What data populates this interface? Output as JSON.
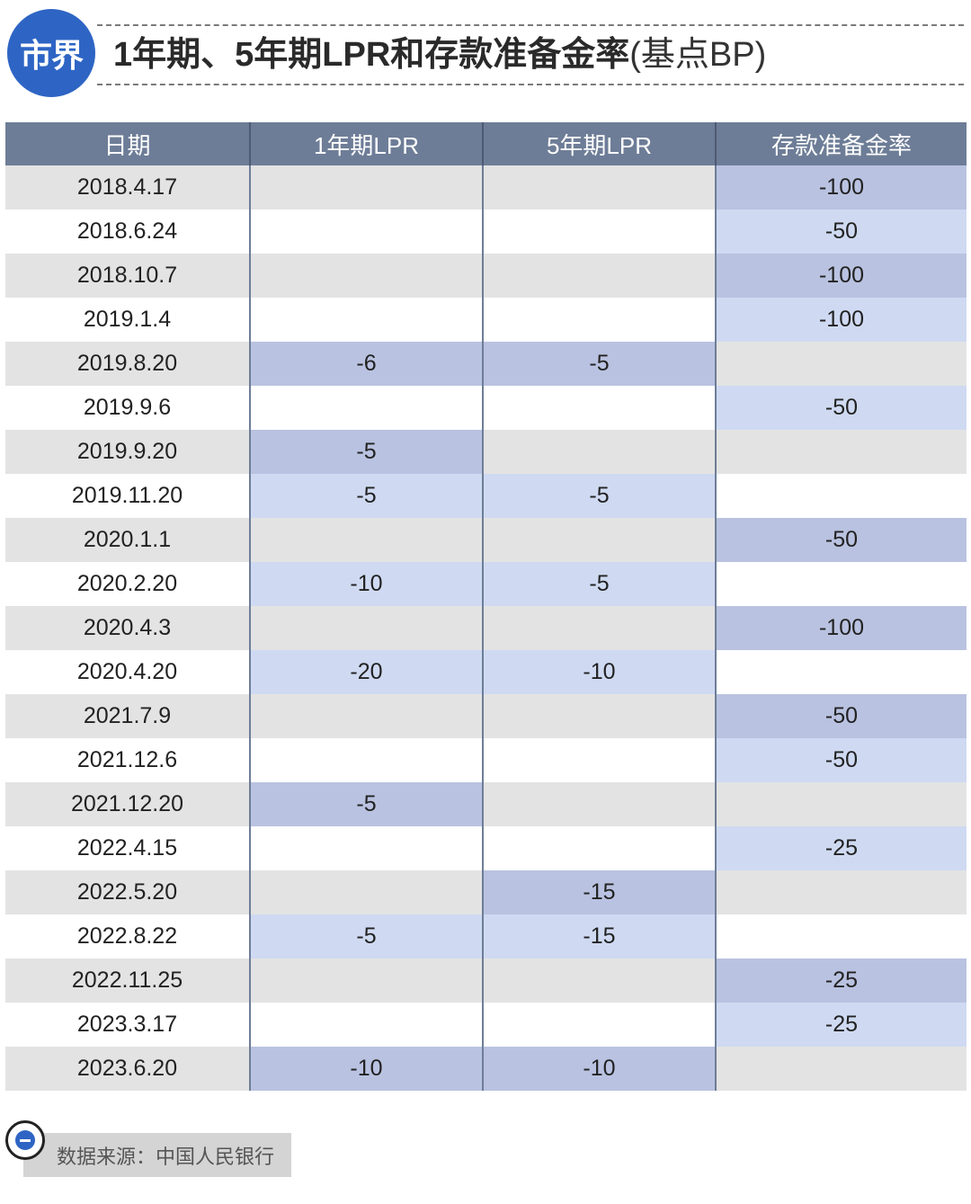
{
  "header": {
    "logo_text": "市界",
    "title_main": "1年期、5年期LPR和存款准备金率",
    "title_unit": "(基点BP)"
  },
  "colors": {
    "header_bg": "#6e7d97",
    "highlight_dark": "#b9c2e0",
    "highlight_light": "#cfdaf2",
    "zebra_gray": "#e3e3e3",
    "logo_blue": "#2e65c4"
  },
  "chart_data": {
    "type": "table",
    "title": "1年期、5年期LPR和存款准备金率(基点BP)",
    "columns": [
      "日期",
      "1年期LPR",
      "5年期LPR",
      "存款准备金率"
    ],
    "rows": [
      [
        "2018.4.17",
        "",
        "",
        "-100"
      ],
      [
        "2018.6.24",
        "",
        "",
        "-50"
      ],
      [
        "2018.10.7",
        "",
        "",
        "-100"
      ],
      [
        "2019.1.4",
        "",
        "",
        "-100"
      ],
      [
        "2019.8.20",
        "-6",
        "-5",
        ""
      ],
      [
        "2019.9.6",
        "",
        "",
        "-50"
      ],
      [
        "2019.9.20",
        "-5",
        "",
        ""
      ],
      [
        "2019.11.20",
        "-5",
        "-5",
        ""
      ],
      [
        "2020.1.1",
        "",
        "",
        "-50"
      ],
      [
        "2020.2.20",
        "-10",
        "-5",
        ""
      ],
      [
        "2020.4.3",
        "",
        "",
        "-100"
      ],
      [
        "2020.4.20",
        "-20",
        "-10",
        ""
      ],
      [
        "2021.7.9",
        "",
        "",
        "-50"
      ],
      [
        "2021.12.6",
        "",
        "",
        "-50"
      ],
      [
        "2021.12.20",
        "-5",
        "",
        ""
      ],
      [
        "2022.4.15",
        "",
        "",
        "-25"
      ],
      [
        "2022.5.20",
        "",
        "-15",
        ""
      ],
      [
        "2022.8.22",
        "-5",
        "-15",
        ""
      ],
      [
        "2022.11.25",
        "",
        "",
        "-25"
      ],
      [
        "2023.3.17",
        "",
        "",
        "-25"
      ],
      [
        "2023.6.20",
        "-10",
        "-10",
        ""
      ]
    ]
  },
  "footer": {
    "source": "数据来源：中国人民银行",
    "icon": "minus-circle-icon"
  }
}
